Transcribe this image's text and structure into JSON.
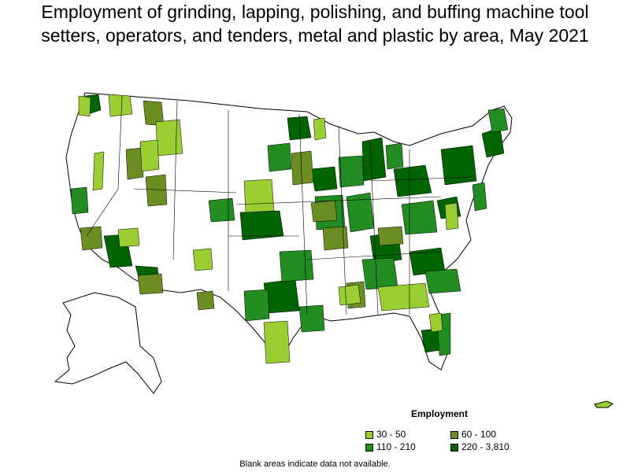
{
  "title_lines": [
    "Employment of grinding, lapping, polishing, and buffing machine tool",
    "setters, operators, and tenders, metal and plastic by area, May 2021"
  ],
  "legend": {
    "title": "Employment",
    "items": [
      {
        "label": "30 - 50",
        "color": "#9acd32"
      },
      {
        "label": "60 - 100",
        "color": "#6b8e23"
      },
      {
        "label": "110 - 210",
        "color": "#228b22"
      },
      {
        "label": "220 - 3,810",
        "color": "#006400"
      }
    ]
  },
  "note": "Blank areas indicate data not available.",
  "colors": {
    "no_data": "#ffffff",
    "border": "#000000"
  }
}
